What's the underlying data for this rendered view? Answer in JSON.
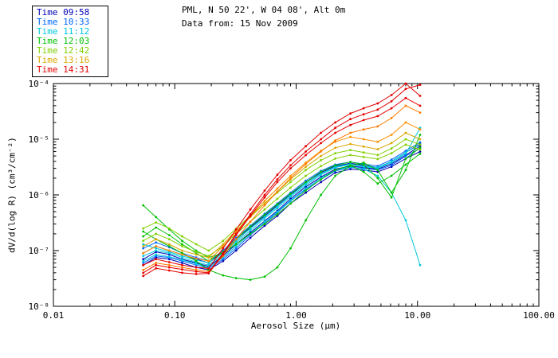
{
  "header": {
    "title": "PML, N 50 22', W 04 08', Alt 0m",
    "subtitle": "Data from: 15 Nov 2009"
  },
  "legend": {
    "items": [
      {
        "label": "Time 09:58",
        "color": "#0000B4"
      },
      {
        "label": "Time 10:33",
        "color": "#0066FF"
      },
      {
        "label": "Time 11:12",
        "color": "#00C8DC"
      },
      {
        "label": "Time 12:03",
        "color": "#00C000"
      },
      {
        "label": "Time 12:42",
        "color": "#80D000"
      },
      {
        "label": "Time 13:16",
        "color": "#D9A800"
      },
      {
        "label": "Time 14:31",
        "color": "#E60000"
      }
    ]
  },
  "chart_data": {
    "type": "line",
    "title": "PML, N 50 22', W 04 08', Alt 0m",
    "subtitle": "Data from: 15 Nov 2009",
    "xlabel": "Aerosol Size (μm)",
    "ylabel": "dV/d(log R) (cm³/cm⁻²)",
    "x_scale": "log",
    "y_scale": "log",
    "xlim": [
      0.01,
      100
    ],
    "ylim": [
      1e-08,
      0.0001
    ],
    "x_ticks": [
      {
        "value": 0.01,
        "label": "0.01"
      },
      {
        "value": 0.1,
        "label": "0.10"
      },
      {
        "value": 1,
        "label": "1.00"
      },
      {
        "value": 10,
        "label": "10.00"
      },
      {
        "value": 100,
        "label": "100.00"
      }
    ],
    "y_ticks": [
      {
        "value": 1e-08,
        "label": "10⁻⁸"
      },
      {
        "value": 1e-07,
        "label": "10⁻⁷"
      },
      {
        "value": 1e-06,
        "label": "10⁻⁶"
      },
      {
        "value": 1e-05,
        "label": "10⁻⁵"
      },
      {
        "value": 0.0001,
        "label": "10⁻⁴"
      }
    ],
    "x": [
      0.055,
      0.07,
      0.09,
      0.115,
      0.15,
      0.19,
      0.25,
      0.32,
      0.42,
      0.55,
      0.7,
      0.9,
      1.2,
      1.6,
      2.1,
      2.8,
      3.6,
      4.7,
      6.1,
      8.0,
      10.5
    ],
    "series": [
      {
        "name": "Time 09:58",
        "color": "#0000B4",
        "y": [
          7e-08,
          9.5e-08,
          8.5e-08,
          7e-08,
          6e-08,
          5.2e-08,
          8e-08,
          1.3e-07,
          2.1e-07,
          3.4e-07,
          5.2e-07,
          8.5e-07,
          1.4e-06,
          2.1e-06,
          2.9e-06,
          3.3e-06,
          3.1e-06,
          2.9e-06,
          3.6e-06,
          5.2e-06,
          7.5e-06
        ]
      },
      {
        "name": "Time 09:58",
        "color": "#0000B4",
        "y": [
          5.5e-08,
          7.5e-08,
          7e-08,
          6e-08,
          5e-08,
          4.5e-08,
          6.5e-08,
          1e-07,
          1.7e-07,
          2.8e-07,
          4.2e-07,
          7e-07,
          1.1e-06,
          1.7e-06,
          2.5e-06,
          2.9e-06,
          2.8e-06,
          2.6e-06,
          3.2e-06,
          4.5e-06,
          6e-06
        ]
      },
      {
        "name": "Time 09:58",
        "color": "#0000B4",
        "y": [
          9e-08,
          1.2e-07,
          1e-07,
          8.5e-08,
          7e-08,
          6e-08,
          9.5e-08,
          1.6e-07,
          2.6e-07,
          4.2e-07,
          6.5e-07,
          1e-06,
          1.7e-06,
          2.5e-06,
          3.3e-06,
          3.7e-06,
          3.4e-06,
          3.1e-06,
          4e-06,
          5.8e-06,
          8.2e-06
        ]
      },
      {
        "name": "Time 10:33",
        "color": "#0066FF",
        "y": [
          6e-08,
          8e-08,
          7.5e-08,
          6.5e-08,
          5.5e-08,
          4.8e-08,
          7e-08,
          1.1e-07,
          1.9e-07,
          3.1e-07,
          4.8e-07,
          7.8e-07,
          1.25e-06,
          1.9e-06,
          2.7e-06,
          3.1e-06,
          3e-06,
          2.8e-06,
          3.4e-06,
          5e-06,
          6.8e-06
        ]
      },
      {
        "name": "Time 10:33",
        "color": "#0066FF",
        "y": [
          1.1e-07,
          1.4e-07,
          1.15e-07,
          9e-08,
          7.5e-08,
          6.5e-08,
          1e-07,
          1.7e-07,
          2.8e-07,
          4.6e-07,
          7e-07,
          1.1e-06,
          1.8e-06,
          2.7e-06,
          3.5e-06,
          3.9e-06,
          3.6e-06,
          3.3e-06,
          4.3e-06,
          6.2e-06,
          8.8e-06
        ]
      },
      {
        "name": "Time 11:12",
        "color": "#00C8DC",
        "y": [
          8e-08,
          1e-07,
          9e-08,
          7.5e-08,
          6.2e-08,
          5.5e-08,
          8.5e-08,
          1.4e-07,
          2.3e-07,
          3.8e-07,
          5.8e-07,
          9.2e-07,
          1.5e-06,
          2.3e-06,
          3.1e-06,
          3.5e-06,
          3.2e-06,
          3e-06,
          3.8e-06,
          5.5e-06,
          1.6e-05
        ]
      },
      {
        "name": "Time 11:12",
        "color": "#00C8DC",
        "y": [
          6.5e-08,
          8.5e-08,
          7.8e-08,
          6.8e-08,
          5.8e-08,
          5e-08,
          7.5e-08,
          1.2e-07,
          2e-07,
          3.3e-07,
          5e-07,
          8e-07,
          1.3e-06,
          2e-06,
          2.8e-06,
          3.2e-06,
          2.9e-06,
          2.2e-06,
          1.1e-06,
          3.5e-07,
          5.5e-08
        ]
      },
      {
        "name": "Time 11:12",
        "color": "#00C8DC",
        "y": [
          1.3e-07,
          1.1e-07,
          9.5e-08,
          8e-08,
          6.8e-08,
          6e-08,
          9e-08,
          1.5e-07,
          2.5e-07,
          4e-07,
          6.2e-07,
          9.8e-07,
          1.6e-06,
          2.4e-06,
          3.2e-06,
          3.6e-06,
          3.3e-06,
          3.1e-06,
          4e-06,
          5.8e-06,
          8e-06
        ]
      },
      {
        "name": "Time 12:03",
        "color": "#00C000",
        "y": [
          6.5e-07,
          4e-07,
          2.4e-07,
          1.5e-07,
          1e-07,
          7.5e-08,
          9e-08,
          1.3e-07,
          2e-07,
          3e-07,
          4.5e-07,
          7e-07,
          1.2e-06,
          1.9e-06,
          2.8e-06,
          3.4e-06,
          2.6e-06,
          1.6e-06,
          2.2e-06,
          3.5e-06,
          5.5e-06
        ]
      },
      {
        "name": "Time 12:03",
        "color": "#00C000",
        "y": [
          2.2e-07,
          1.6e-07,
          1.2e-07,
          9e-08,
          6.5e-08,
          4.5e-08,
          3.6e-08,
          3.2e-08,
          3e-08,
          3.4e-08,
          5e-08,
          1.1e-07,
          3.5e-07,
          1e-06,
          2.2e-06,
          3.3e-06,
          3.8e-06,
          2.8e-06,
          1.1e-06,
          2.8e-06,
          1.2e-05
        ]
      },
      {
        "name": "Time 12:03",
        "color": "#00C000",
        "y": [
          1.8e-07,
          2.6e-07,
          1.9e-07,
          1.3e-07,
          9e-08,
          6.5e-08,
          9.5e-08,
          1.6e-07,
          2.7e-07,
          4.4e-07,
          6.8e-07,
          1.05e-06,
          1.7e-06,
          2.6e-06,
          3.4e-06,
          3.9e-06,
          3.5e-06,
          2e-06,
          9e-07,
          4.5e-06,
          7e-06
        ]
      },
      {
        "name": "Time 12:42",
        "color": "#80D000",
        "y": [
          1.5e-07,
          2e-07,
          1.6e-07,
          1.2e-07,
          9.5e-08,
          8e-08,
          1.2e-07,
          2e-07,
          3.3e-07,
          5.5e-07,
          8.5e-07,
          1.35e-06,
          2.2e-06,
          3.3e-06,
          4.5e-06,
          5.2e-06,
          4.8e-06,
          4.4e-06,
          5.6e-06,
          8e-06,
          6.5e-06
        ]
      },
      {
        "name": "Time 12:42",
        "color": "#80D000",
        "y": [
          2.5e-07,
          3.2e-07,
          2.5e-07,
          1.8e-07,
          1.3e-07,
          1e-07,
          1.5e-07,
          2.5e-07,
          4.2e-07,
          7e-07,
          1.1e-06,
          1.7e-06,
          2.8e-06,
          4.2e-06,
          5.6e-06,
          6.4e-06,
          5.8e-06,
          5.2e-06,
          6.8e-06,
          1e-05,
          8e-06
        ]
      },
      {
        "name": "Time 13:16",
        "color": "#D9A800",
        "y": [
          1.2e-07,
          1.6e-07,
          1.3e-07,
          1e-07,
          8.5e-08,
          7.5e-08,
          1.3e-07,
          2.3e-07,
          4e-07,
          7e-07,
          1.15e-06,
          1.9e-06,
          3.2e-06,
          5e-06,
          7e-06,
          8.2e-06,
          7.4e-06,
          6.6e-06,
          8.5e-06,
          1.3e-05,
          1e-05
        ]
      },
      {
        "name": "Time 13:16",
        "color": "#FF9100",
        "y": [
          9e-08,
          1.2e-07,
          1e-07,
          8.5e-08,
          7.2e-08,
          6.5e-08,
          1.2e-07,
          2.2e-07,
          4.2e-07,
          7.8e-07,
          1.3e-06,
          2.2e-06,
          3.8e-06,
          6.2e-06,
          9e-06,
          1.1e-05,
          1e-05,
          9e-06,
          1.2e-05,
          2e-05,
          1.5e-05
        ]
      },
      {
        "name": "Time 13:16",
        "color": "#FF7A00",
        "y": [
          4.5e-08,
          6e-08,
          5.5e-08,
          5e-08,
          4.5e-08,
          4.2e-08,
          8e-08,
          1.6e-07,
          3.3e-07,
          6.5e-07,
          1.15e-06,
          2e-06,
          3.6e-06,
          6e-06,
          9.5e-06,
          1.3e-05,
          1.5e-05,
          1.7e-05,
          2.4e-05,
          4e-05,
          3e-05
        ]
      },
      {
        "name": "Time 14:31",
        "color": "#E60000",
        "y": [
          4e-08,
          5.5e-08,
          5e-08,
          4.6e-08,
          4.2e-08,
          4e-08,
          9e-08,
          2e-07,
          4.5e-07,
          1e-06,
          1.9e-06,
          3.4e-06,
          6e-06,
          1e-05,
          1.6e-05,
          2.3e-05,
          2.8e-05,
          3.4e-05,
          4.8e-05,
          8e-05,
          9.5e-05
        ]
      },
      {
        "name": "Time 14:31",
        "color": "#E60000",
        "y": [
          5.5e-08,
          7e-08,
          6.2e-08,
          5.5e-08,
          5e-08,
          4.8e-08,
          1.1e-07,
          2.4e-07,
          5.5e-07,
          1.2e-06,
          2.3e-06,
          4.2e-06,
          7.5e-06,
          1.3e-05,
          2e-05,
          2.9e-05,
          3.6e-05,
          4.4e-05,
          6.2e-05,
          0.0001,
          6e-05
        ]
      },
      {
        "name": "Time 14:31",
        "color": "#E60000",
        "y": [
          3.5e-08,
          4.8e-08,
          4.4e-08,
          4e-08,
          3.8e-08,
          3.9e-08,
          8.5e-08,
          1.9e-07,
          4.2e-07,
          9e-07,
          1.7e-06,
          3e-06,
          5.2e-06,
          8.5e-06,
          1.3e-05,
          1.8e-05,
          2.2e-05,
          2.6e-05,
          3.6e-05,
          5.5e-05,
          4e-05
        ]
      }
    ]
  }
}
